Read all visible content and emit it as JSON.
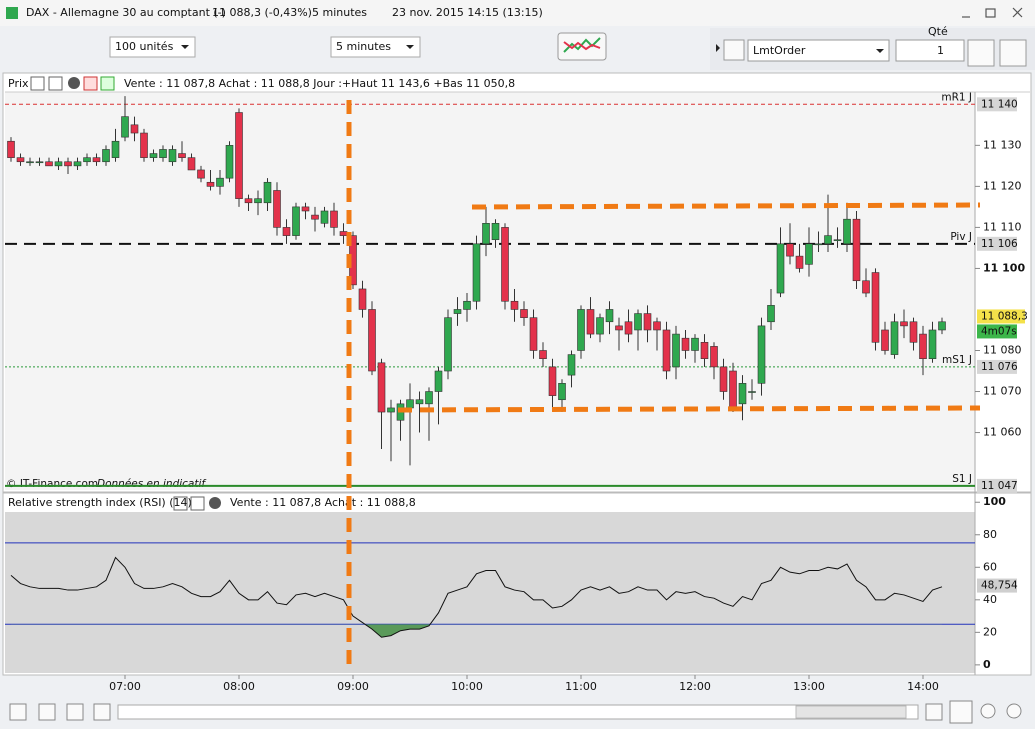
{
  "window": {
    "title": "DAX - Allemagne 30 au comptant (-)",
    "quote": "11 088,3 (-0,43%)",
    "interval": "5 minutes",
    "datetime": "23 nov. 2015 14:15 (13:15)"
  },
  "toolbar": {
    "quantity_select": "100 unités",
    "interval_select": "5 minutes",
    "qty_label": "Qté",
    "qty_value": "1",
    "order_type": "LmtOrder"
  },
  "price_panel": {
    "label": "Prix",
    "info": "Vente : 11 087,8 Achat : 11 088,8 Jour :+Haut 11 143,6 +Bas 11 050,8",
    "watermark": "© IT-Finance.com",
    "watermark_note": "Données en indicatif"
  },
  "rsi_panel": {
    "label": "Relative strength index (RSI) (14)",
    "info": "Vente : 11 087,8 Achat : 11 088,8"
  },
  "chart_data": {
    "type": "candlestick",
    "up_color": "#2fa84f",
    "down_color": "#e3324b",
    "ylim": [
      11046,
      11143
    ],
    "yticks": [
      {
        "value": 11130,
        "label": "11 130"
      },
      {
        "value": 11120,
        "label": "11 120"
      },
      {
        "value": 11110,
        "label": "11 110"
      },
      {
        "value": 11100,
        "label": "11 100"
      },
      {
        "value": 11080,
        "label": "11 080"
      },
      {
        "value": 11070,
        "label": "11 070"
      },
      {
        "value": 11060,
        "label": "11 060"
      }
    ],
    "xticks": [
      "07:00",
      "08:00",
      "09:00",
      "10:00",
      "11:00",
      "12:00",
      "13:00",
      "14:00"
    ],
    "levels": [
      {
        "name": "mR1 J",
        "value": 11140,
        "label": "11 140",
        "color": "#d93030",
        "style": "dashed"
      },
      {
        "name": "Piv J",
        "value": 11106,
        "label": "11 106",
        "color": "#111111",
        "style": "bigdash"
      },
      {
        "name": "mS1 J",
        "value": 11076,
        "label": "11 076",
        "color": "#2a9a3a",
        "style": "dotted"
      },
      {
        "name": "S1 J",
        "value": 11047,
        "label": "11 047",
        "color": "#2a8a2a",
        "style": "solid"
      }
    ],
    "last": {
      "value": 11088.3,
      "label": "11 088,3",
      "timer": "4m07s"
    },
    "candles": [
      [
        11131,
        11132,
        11126,
        11127
      ],
      [
        11127,
        11128,
        11125,
        11126
      ],
      [
        11126,
        11127,
        11125,
        11126
      ],
      [
        11126,
        11127,
        11125,
        11126
      ],
      [
        11126,
        11127,
        11125,
        11125
      ],
      [
        11125,
        11127,
        11124,
        11126
      ],
      [
        11126,
        11127,
        11123,
        11125
      ],
      [
        11125,
        11127,
        11124,
        11126
      ],
      [
        11126,
        11128,
        11125,
        11127
      ],
      [
        11127,
        11128,
        11125,
        11126
      ],
      [
        11126,
        11130,
        11125,
        11129
      ],
      [
        11127,
        11134,
        11126,
        11131
      ],
      [
        11132,
        11142,
        11131,
        11137
      ],
      [
        11135,
        11137,
        11131,
        11133
      ],
      [
        11133,
        11134,
        11126,
        11127
      ],
      [
        11127,
        11129,
        11126,
        11128
      ],
      [
        11127,
        11130,
        11126,
        11129
      ],
      [
        11126,
        11130,
        11125,
        11129
      ],
      [
        11128,
        11131,
        11126,
        11127
      ],
      [
        11127,
        11128,
        11124,
        11124
      ],
      [
        11124,
        11125,
        11121,
        11122
      ],
      [
        11121,
        11124,
        11119,
        11120
      ],
      [
        11120,
        11124,
        11118,
        11122
      ],
      [
        11122,
        11131,
        11121,
        11130
      ],
      [
        11138,
        11139,
        11115,
        11117
      ],
      [
        11117,
        11118,
        11114,
        11116
      ],
      [
        11116,
        11119,
        11113,
        11117
      ],
      [
        11116,
        11122,
        11114,
        11121
      ],
      [
        11119,
        11121,
        11108,
        11110
      ],
      [
        11110,
        11112,
        11106,
        11108
      ],
      [
        11108,
        11116,
        11107,
        11115
      ],
      [
        11115,
        11116,
        11112,
        11114
      ],
      [
        11113,
        11115,
        11109,
        11112
      ],
      [
        11111,
        11115,
        11110,
        11114
      ],
      [
        11114,
        11116,
        11108,
        11110
      ],
      [
        11109,
        11111,
        11106,
        11108
      ],
      [
        11108,
        11109,
        11095,
        11096
      ],
      [
        11095,
        11097,
        11088,
        11090
      ],
      [
        11090,
        11092,
        11074,
        11075
      ],
      [
        11077,
        11078,
        11056,
        11065
      ],
      [
        11065,
        11068,
        11053,
        11066
      ],
      [
        11063,
        11068,
        11058,
        11067
      ],
      [
        11066,
        11072,
        11052,
        11068
      ],
      [
        11067,
        11070,
        11060,
        11068
      ],
      [
        11067,
        11071,
        11058,
        11070
      ],
      [
        11070,
        11076,
        11062,
        11075
      ],
      [
        11075,
        11090,
        11073,
        11088
      ],
      [
        11089,
        11093,
        11086,
        11090
      ],
      [
        11090,
        11094,
        11087,
        11092
      ],
      [
        11092,
        11108,
        11090,
        11106
      ],
      [
        11106,
        11115,
        11103,
        11111
      ],
      [
        11107,
        11112,
        11105,
        11111
      ],
      [
        11110,
        11111,
        11090,
        11092
      ],
      [
        11092,
        11095,
        11087,
        11090
      ],
      [
        11090,
        11092,
        11086,
        11088
      ],
      [
        11088,
        11090,
        11078,
        11080
      ],
      [
        11080,
        11082,
        11076,
        11078
      ],
      [
        11076,
        11078,
        11066,
        11069
      ],
      [
        11068,
        11073,
        11065,
        11072
      ],
      [
        11074,
        11080,
        11071,
        11079
      ],
      [
        11080,
        11091,
        11078,
        11090
      ],
      [
        11090,
        11093,
        11083,
        11084
      ],
      [
        11084,
        11089,
        11082,
        11088
      ],
      [
        11087,
        11092,
        11084,
        11090
      ],
      [
        11086,
        11088,
        11080,
        11085
      ],
      [
        11087,
        11090,
        11082,
        11084
      ],
      [
        11085,
        11090,
        11080,
        11089
      ],
      [
        11089,
        11091,
        11082,
        11085
      ],
      [
        11087,
        11088,
        11080,
        11085
      ],
      [
        11085,
        11087,
        11073,
        11075
      ],
      [
        11076,
        11086,
        11073,
        11084
      ],
      [
        11083,
        11085,
        11078,
        11080
      ],
      [
        11080,
        11084,
        11077,
        11083
      ],
      [
        11082,
        11084,
        11076,
        11078
      ],
      [
        11081,
        11082,
        11073,
        11076
      ],
      [
        11076,
        11078,
        11068,
        11070
      ],
      [
        11075,
        11077,
        11065,
        11066
      ],
      [
        11067,
        11074,
        11063,
        11072
      ],
      [
        11070,
        11073,
        11068,
        11070
      ],
      [
        11072,
        11088,
        11069,
        11086
      ],
      [
        11087,
        11095,
        11085,
        11091
      ],
      [
        11094,
        11110,
        11093,
        11106
      ],
      [
        11106,
        11111,
        11101,
        11103
      ],
      [
        11103,
        11106,
        11099,
        11100
      ],
      [
        11101,
        11110,
        11098,
        11106
      ],
      [
        11106,
        11109,
        11104,
        11106
      ],
      [
        11106,
        11118,
        11104,
        11108
      ],
      [
        11107,
        11110,
        11105,
        11107
      ],
      [
        11106,
        11116,
        11104,
        11112
      ],
      [
        11112,
        11114,
        11095,
        11097
      ],
      [
        11097,
        11100,
        11093,
        11094
      ],
      [
        11099,
        11100,
        11080,
        11082
      ],
      [
        11085,
        11087,
        11079,
        11080
      ],
      [
        11079,
        11089,
        11078,
        11087
      ],
      [
        11087,
        11090,
        11083,
        11086
      ],
      [
        11087,
        11088,
        11080,
        11082
      ],
      [
        11084,
        11086,
        11074,
        11078
      ],
      [
        11078,
        11087,
        11077,
        11085
      ],
      [
        11085,
        11088,
        11084,
        11087
      ]
    ],
    "rsi": {
      "ylim": [
        -5,
        94
      ],
      "yticks": [
        0,
        20,
        40,
        60,
        80,
        100
      ],
      "levels": [
        75,
        25
      ],
      "color": "#111111",
      "oversold_fill": "#5a9a5a",
      "last": {
        "value": 48.754,
        "label": "48,754"
      },
      "values": [
        55,
        50,
        48,
        47,
        47,
        47,
        46,
        46,
        47,
        48,
        52,
        66,
        60,
        50,
        47,
        47,
        48,
        50,
        48,
        44,
        42,
        42,
        45,
        52,
        44,
        40,
        40,
        45,
        38,
        37,
        43,
        44,
        42,
        44,
        42,
        40,
        30,
        26,
        22,
        17,
        18,
        21,
        22,
        22,
        24,
        32,
        44,
        46,
        48,
        56,
        58,
        58,
        48,
        46,
        45,
        40,
        40,
        35,
        36,
        40,
        46,
        48,
        46,
        48,
        44,
        45,
        48,
        46,
        46,
        40,
        45,
        44,
        45,
        42,
        41,
        38,
        36,
        42,
        40,
        50,
        52,
        60,
        57,
        56,
        58,
        58,
        60,
        59,
        62,
        52,
        48,
        40,
        40,
        44,
        43,
        41,
        39,
        46,
        48
      ]
    }
  }
}
